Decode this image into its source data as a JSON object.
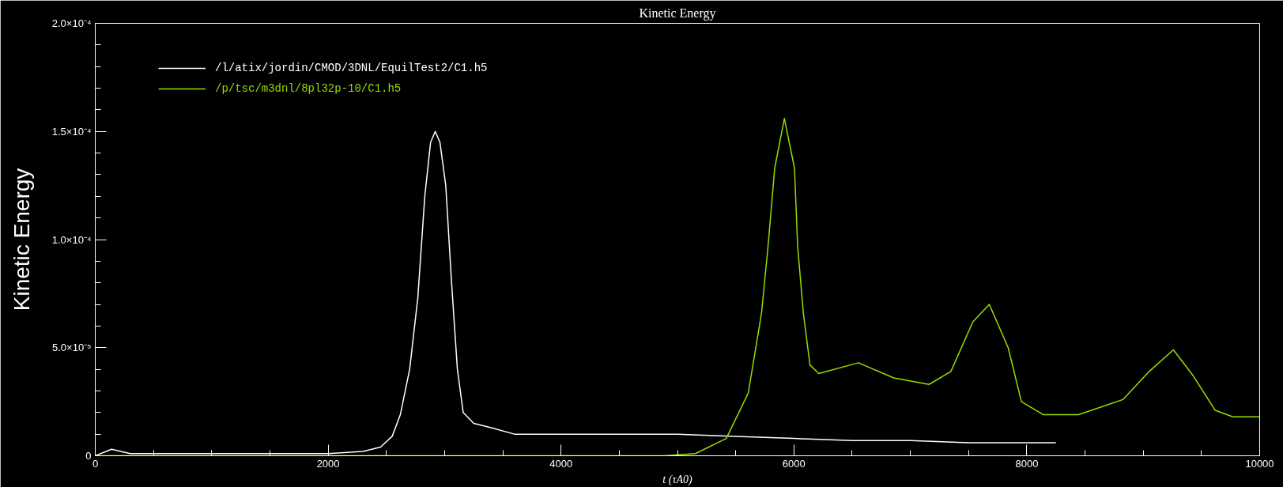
{
  "chart_data": {
    "type": "line",
    "title": "Kinetic Energy",
    "xlabel": "t (τA0)",
    "ylabel": "Kinetic Energy",
    "xlim": [
      0,
      10000
    ],
    "xticks": [
      0,
      2000,
      4000,
      6000,
      8000,
      10000
    ],
    "ylim": [
      0,
      0.0002
    ],
    "yticks": [
      {
        "value": 0,
        "label": "0"
      },
      {
        "value": 5e-05,
        "label": "5.0×10⁻⁵"
      },
      {
        "value": 0.0001,
        "label": "1.0×10⁻⁴"
      },
      {
        "value": 0.00015,
        "label": "1.5×10⁻⁴"
      },
      {
        "value": 0.0002,
        "label": "2.0×10⁻⁴"
      }
    ],
    "grid": false,
    "legend": "top left",
    "marker": "none",
    "line_style": "solid",
    "series": [
      {
        "name": "/l/atix/jordin/CMOD/3DNL/EquilTest2/C1.h5",
        "color": "#ffffff",
        "x": [
          0,
          140,
          300,
          700,
          1000,
          2000,
          2300,
          2450,
          2550,
          2620,
          2700,
          2770,
          2830,
          2880,
          2920,
          2960,
          3010,
          3060,
          3110,
          3160,
          3250,
          3400,
          3600,
          4000,
          4400,
          5000,
          5500,
          6000,
          6500,
          7000,
          7500,
          8250
        ],
        "values": [
          0,
          3e-06,
          1e-06,
          1e-06,
          1e-06,
          1e-06,
          2e-06,
          4e-06,
          9e-06,
          1.9e-05,
          4e-05,
          7.3e-05,
          0.00012,
          0.000145,
          0.00015,
          0.000145,
          0.000125,
          8e-05,
          4e-05,
          2e-05,
          1.5e-05,
          1.3e-05,
          1e-05,
          1e-05,
          1e-05,
          1e-05,
          9e-06,
          8e-06,
          7e-06,
          7e-06,
          6e-06,
          6e-06
        ]
      },
      {
        "name": "/p/tsc/m3dnl/8pl32p-10/C1.h5",
        "color": "#99dd00",
        "x": [
          0,
          4890,
          5154,
          5419,
          5608,
          5722,
          5778,
          5835,
          5918,
          6005,
          6032,
          6081,
          6138,
          6213,
          6554,
          6857,
          7160,
          7348,
          7537,
          7678,
          7840,
          7954,
          8143,
          8445,
          8825,
          9051,
          9259,
          9429,
          9618,
          9770,
          10000
        ],
        "values": [
          0,
          0,
          1e-06,
          8e-06,
          2.9e-05,
          6.6e-05,
          9.7e-05,
          0.000133,
          0.000156,
          0.000133,
          9.7e-05,
          6.6e-05,
          4.2e-05,
          3.8e-05,
          4.3e-05,
          3.6e-05,
          3.3e-05,
          3.9e-05,
          6.2e-05,
          7e-05,
          5e-05,
          2.5e-05,
          1.9e-05,
          1.9e-05,
          2.6e-05,
          3.9e-05,
          4.9e-05,
          3.7e-05,
          2.1e-05,
          1.8e-05,
          1.8e-05
        ]
      }
    ]
  }
}
